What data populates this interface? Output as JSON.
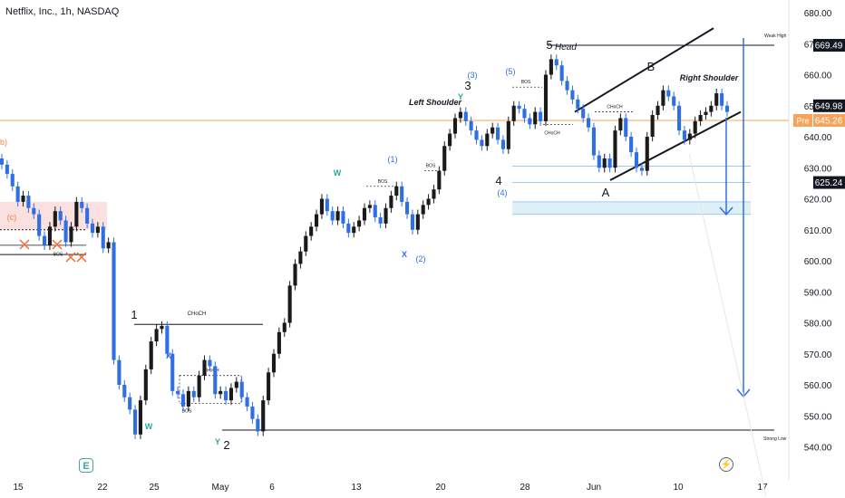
{
  "header": {
    "title": "Netflix, Inc., 1h, NASDAQ"
  },
  "chart_data": {
    "type": "candlestick",
    "symbol": "Netflix, Inc.",
    "interval": "1h",
    "exchange": "NASDAQ",
    "ylim": [
      535,
      685
    ],
    "y_ticks": [
      540,
      550,
      560,
      570,
      580,
      590,
      600,
      610,
      620,
      630,
      640,
      650,
      660,
      670,
      680
    ],
    "y_tick_labels": [
      "540.00",
      "550.00",
      "560.00",
      "570.00",
      "580.00",
      "590.00",
      "600.00",
      "610.00",
      "620.00",
      "630.00",
      "640.00",
      "650.00",
      "660.00",
      "670.00",
      "680.00"
    ],
    "x_tick_labels": [
      "15",
      "22",
      "25",
      "May",
      "6",
      "13",
      "20",
      "28",
      "Jun",
      "10",
      "17"
    ],
    "price_labels": [
      {
        "value": 669.49,
        "text": "669.49",
        "style": "dark"
      },
      {
        "value": 649.98,
        "text": "649.98",
        "style": "dark"
      },
      {
        "value": 645.26,
        "text": "645.26",
        "prefix": "Pre",
        "style": "orange"
      },
      {
        "value": 625.24,
        "text": "625.24",
        "style": "dark"
      }
    ],
    "series": [
      {
        "values": [
          631,
          628,
          624,
          619,
          621,
          617,
          615,
          608,
          605,
          611,
          616,
          613,
          606,
          611,
          619,
          617,
          612,
          609,
          611,
          604,
          606,
          568,
          560,
          556,
          552,
          544,
          555,
          565,
          574,
          578,
          579,
          570,
          558,
          557,
          553,
          558,
          556,
          563,
          568,
          566,
          557,
          558,
          555,
          559,
          561,
          556,
          553,
          549,
          545,
          555,
          564,
          570,
          577,
          580,
          592,
          599,
          603,
          608,
          611,
          615,
          620,
          616,
          613,
          616,
          612,
          609,
          611,
          613,
          617,
          618,
          614,
          612,
          617,
          621,
          624,
          619,
          615,
          610,
          615,
          618,
          620,
          623,
          629,
          637,
          641,
          646,
          648,
          645,
          642,
          639,
          637,
          641,
          643,
          639,
          636,
          645,
          650,
          649,
          646,
          644,
          648,
          645,
          660,
          665,
          663,
          658,
          655,
          652,
          649,
          646,
          643,
          634,
          630,
          633,
          630,
          642,
          646,
          640,
          635,
          630,
          629,
          640,
          647,
          650,
          655,
          653,
          650,
          642,
          639,
          641,
          645,
          647,
          648,
          650,
          654,
          650,
          648
        ]
      }
    ],
    "horizontal_levels": [
      {
        "value": 669.49,
        "label": "Weak High"
      },
      {
        "value": 545.4,
        "label": "Strong Low"
      },
      {
        "value": 645.26,
        "label": ""
      }
    ],
    "wave_labels": [
      "1",
      "2",
      "3",
      "4",
      "5",
      "A",
      "B",
      "(1)",
      "(2)",
      "(3)",
      "(4)",
      "(5)",
      "W",
      "X",
      "Y",
      "(c)",
      "b)"
    ],
    "annotations": {
      "head": "Head",
      "left_shoulder": "Left Shoulder",
      "right_shoulder": "Right Shoulder",
      "choch": "CHoCH",
      "bos": "BOS",
      "weak_high": "Weak High",
      "strong_low": "Strong Low"
    },
    "grid": false,
    "legend": "none"
  }
}
